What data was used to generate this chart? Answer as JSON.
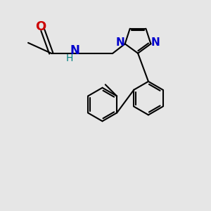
{
  "bg_color": "#e6e6e6",
  "bond_color": "#000000",
  "nitrogen_color": "#0000cc",
  "oxygen_color": "#cc0000",
  "teal_color": "#008080",
  "line_width": 1.5,
  "figsize": [
    3.0,
    3.0
  ],
  "dpi": 100,
  "xlim": [
    0,
    10
  ],
  "ylim": [
    0,
    10
  ]
}
